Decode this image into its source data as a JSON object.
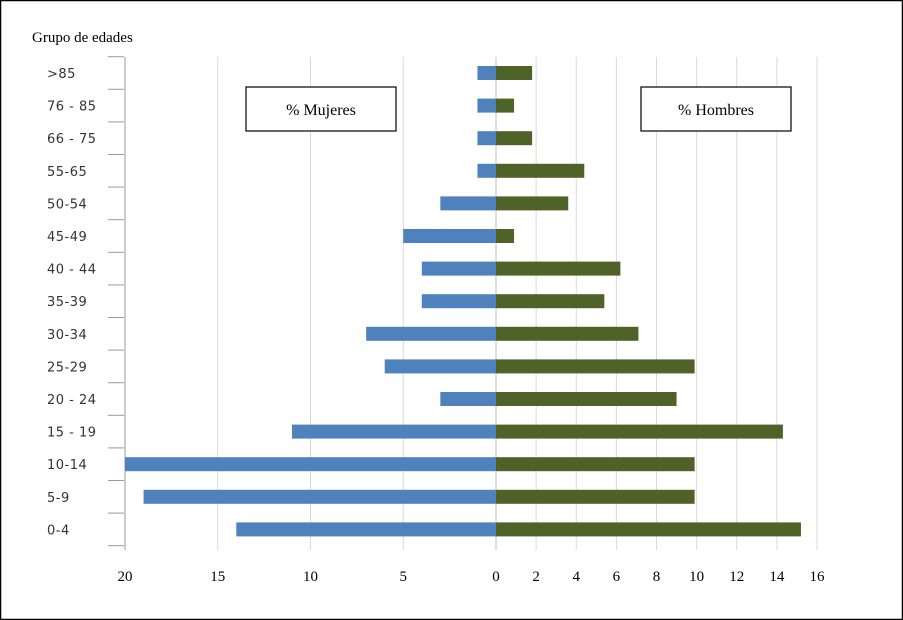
{
  "chart_data": {
    "type": "bar",
    "title": "Grupo de edades",
    "categories": [
      ">85",
      "76 - 85",
      "66 - 75",
      "55-65",
      "50-54",
      "45-49",
      "40 - 44",
      "35-39",
      "30-34",
      "25-29",
      "20 - 24",
      "15 - 19",
      "10-14",
      "5-9",
      "0-4"
    ],
    "series": [
      {
        "name": "% Mujeres",
        "color": "#4f81bd",
        "values": [
          1,
          1,
          1,
          1,
          3,
          5,
          4,
          4,
          7,
          6,
          3,
          11,
          20,
          19,
          14
        ]
      },
      {
        "name": "% Hombres",
        "color": "#4f6228",
        "values": [
          1.8,
          0.9,
          1.8,
          4.4,
          3.6,
          0.9,
          6.2,
          5.4,
          7.1,
          9.9,
          9,
          14.3,
          9.9,
          9.9,
          15.2
        ]
      }
    ],
    "left_axis": {
      "ticks": [
        20,
        15,
        10,
        5,
        0
      ],
      "range": [
        20,
        0
      ]
    },
    "right_axis": {
      "ticks": [
        0,
        2,
        4,
        6,
        8,
        10,
        12,
        14,
        16
      ],
      "range": [
        0,
        16
      ]
    },
    "legend_labels": [
      "% Mujeres",
      "% Hombres"
    ],
    "grid": true
  }
}
